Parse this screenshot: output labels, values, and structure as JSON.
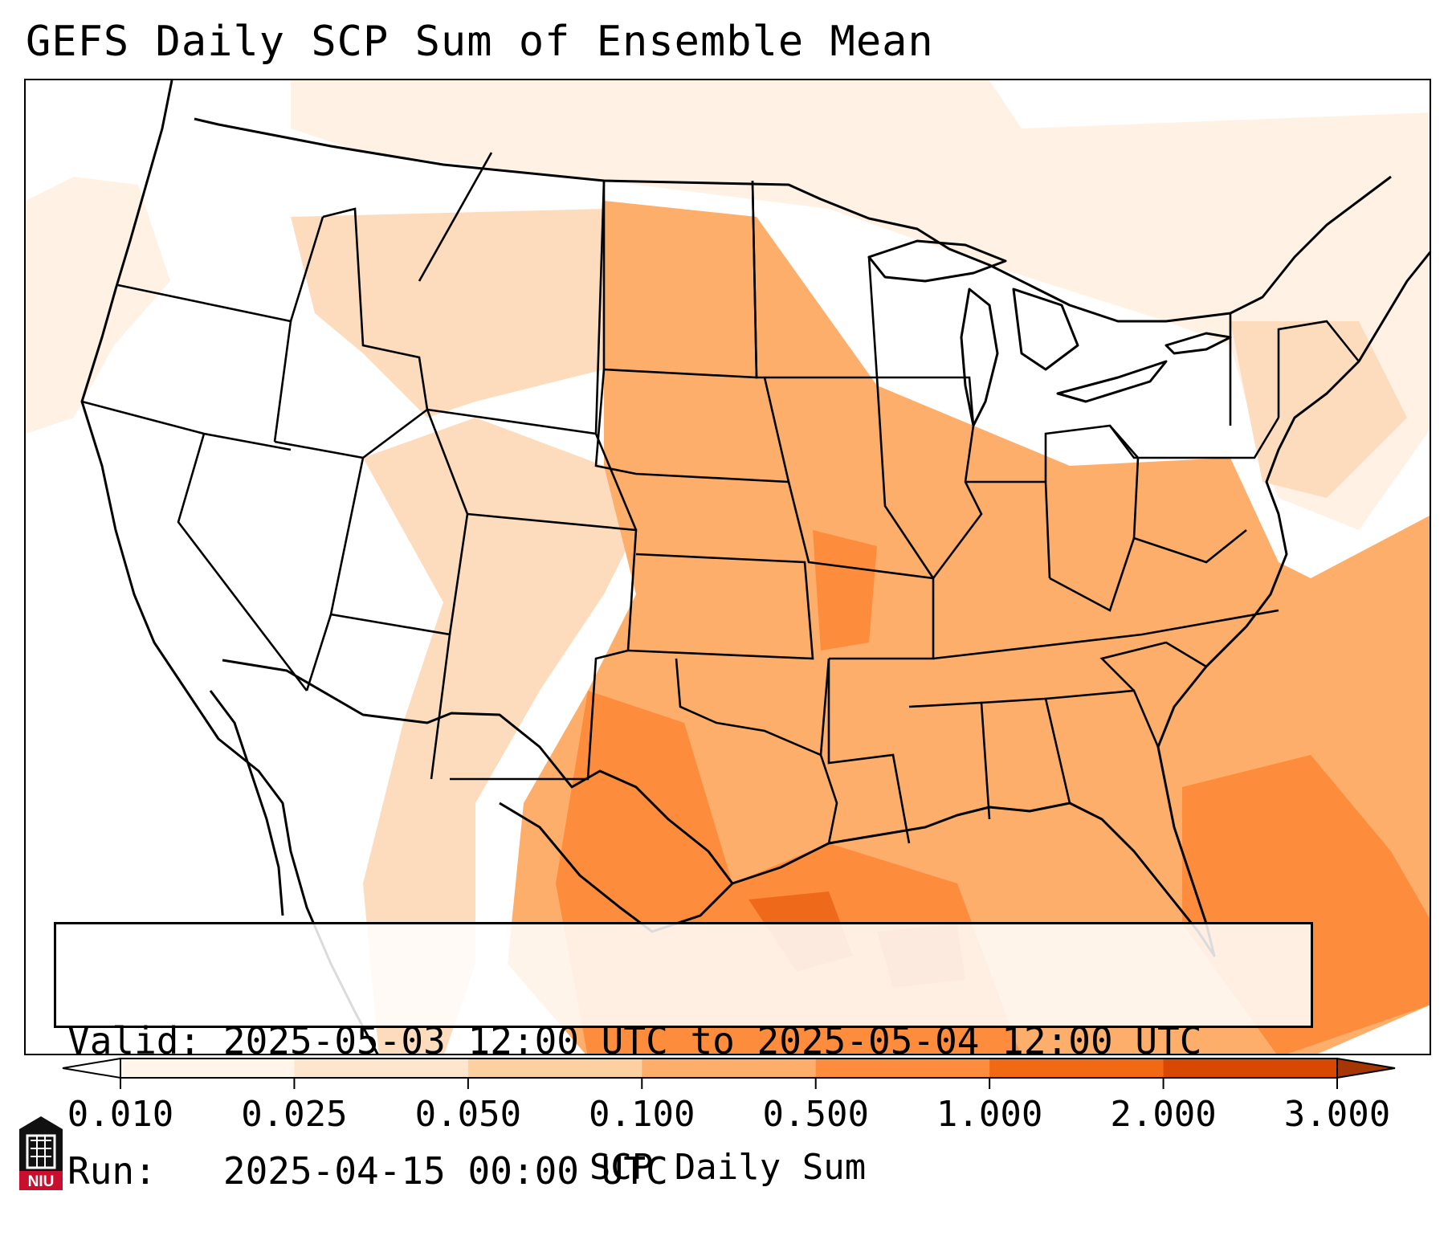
{
  "title": "GEFS Daily SCP Sum of Ensemble Mean",
  "valid": {
    "valid_label": "Valid:",
    "valid_range": "2025-05-03 12:00 UTC to 2025-05-04 12:00 UTC",
    "run_label": "Run:",
    "run_time": "2025-04-15 00:00 UTC"
  },
  "colorbar": {
    "label": "SCP Daily Sum",
    "ticks": [
      "0.010",
      "0.025",
      "0.050",
      "0.100",
      "0.500",
      "1.000",
      "2.000",
      "3.000"
    ],
    "colors": [
      "#fff5eb",
      "#fee6ce",
      "#fdd0a2",
      "#fdae6b",
      "#fd8d3c",
      "#f16913",
      "#d94801"
    ],
    "under_color": "#ffffff",
    "over_color": "#a63603",
    "extend": "both"
  },
  "map": {
    "region": "CONUS",
    "fill_colors": {
      "light": "#fff1e4",
      "pale": "#fddcbe",
      "moderate": "#fdae6b",
      "strong": "#fd8d3c",
      "intense": "#ee6a1a"
    }
  },
  "logo": {
    "text": "NIU",
    "accent": "#c8102e"
  }
}
